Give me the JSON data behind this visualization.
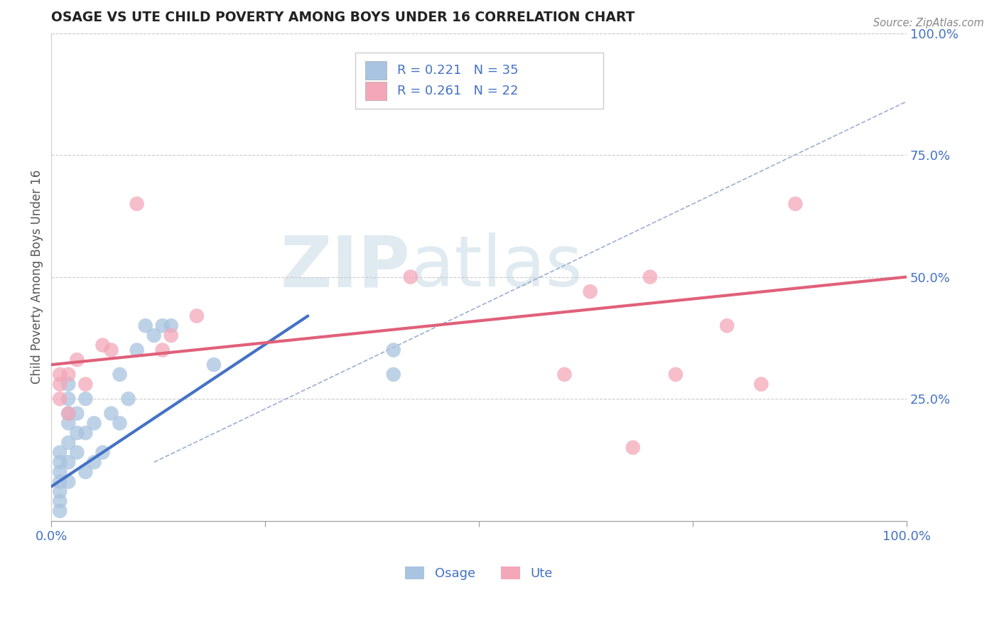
{
  "title": "OSAGE VS UTE CHILD POVERTY AMONG BOYS UNDER 16 CORRELATION CHART",
  "source": "Source: ZipAtlas.com",
  "ylabel": "Child Poverty Among Boys Under 16",
  "xlim": [
    0,
    1
  ],
  "ylim": [
    0,
    1
  ],
  "ytick_positions": [
    0.25,
    0.5,
    0.75,
    1.0
  ],
  "ytick_labels": [
    "25.0%",
    "50.0%",
    "75.0%",
    "100.0%"
  ],
  "osage_R": 0.221,
  "osage_N": 35,
  "ute_R": 0.261,
  "ute_N": 22,
  "osage_color": "#a8c4e0",
  "ute_color": "#f4a7b9",
  "osage_line_color": "#4472c4",
  "ute_line_color": "#e0607a",
  "legend_osage_label": "Osage",
  "legend_ute_label": "Ute",
  "watermark_zip": "ZIP",
  "watermark_atlas": "atlas",
  "background_color": "#ffffff",
  "grid_color": "#cccccc",
  "osage_line_x0": 0.0,
  "osage_line_y0": 0.07,
  "osage_line_x1": 0.3,
  "osage_line_y1": 0.42,
  "ute_line_x0": 0.0,
  "ute_line_y0": 0.32,
  "ute_line_x1": 1.0,
  "ute_line_y1": 0.5,
  "dash_line_x0": 0.12,
  "dash_line_y0": 0.12,
  "dash_line_x1": 1.0,
  "dash_line_y1": 0.86,
  "osage_x": [
    0.01,
    0.01,
    0.01,
    0.01,
    0.01,
    0.01,
    0.01,
    0.02,
    0.02,
    0.02,
    0.02,
    0.02,
    0.02,
    0.02,
    0.03,
    0.03,
    0.03,
    0.04,
    0.04,
    0.04,
    0.05,
    0.05,
    0.06,
    0.07,
    0.08,
    0.08,
    0.09,
    0.1,
    0.11,
    0.12,
    0.13,
    0.14,
    0.19,
    0.4,
    0.4
  ],
  "osage_y": [
    0.02,
    0.04,
    0.06,
    0.08,
    0.1,
    0.12,
    0.14,
    0.08,
    0.12,
    0.16,
    0.2,
    0.22,
    0.25,
    0.28,
    0.14,
    0.18,
    0.22,
    0.1,
    0.18,
    0.25,
    0.12,
    0.2,
    0.14,
    0.22,
    0.2,
    0.3,
    0.25,
    0.35,
    0.4,
    0.38,
    0.4,
    0.4,
    0.32,
    0.35,
    0.3
  ],
  "ute_x": [
    0.01,
    0.01,
    0.01,
    0.02,
    0.02,
    0.03,
    0.04,
    0.06,
    0.07,
    0.1,
    0.13,
    0.14,
    0.17,
    0.42,
    0.6,
    0.63,
    0.68,
    0.7,
    0.73,
    0.79,
    0.83,
    0.87
  ],
  "ute_y": [
    0.25,
    0.28,
    0.3,
    0.22,
    0.3,
    0.33,
    0.28,
    0.36,
    0.35,
    0.65,
    0.35,
    0.38,
    0.42,
    0.5,
    0.3,
    0.47,
    0.15,
    0.5,
    0.3,
    0.4,
    0.28,
    0.65
  ]
}
